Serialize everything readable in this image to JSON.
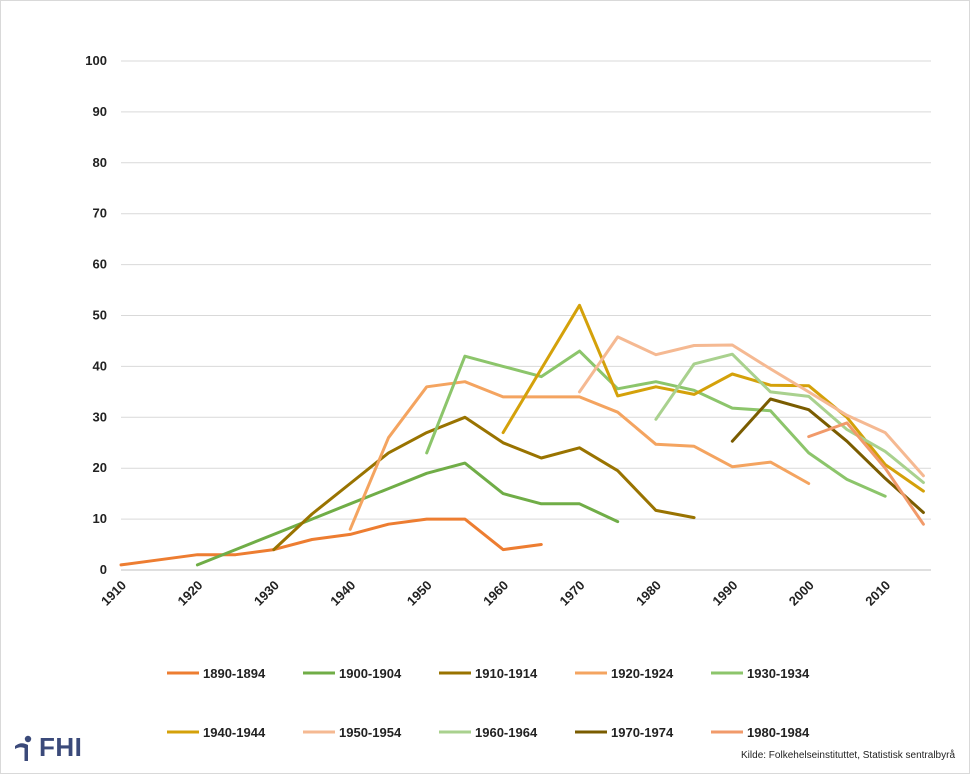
{
  "logo": {
    "text": "FHI",
    "icon": "fhi-logo-icon",
    "color": "#3b4a7a"
  },
  "source": "Kilde: Folkehelseinstituttet, Statistisk sentralbyrå",
  "chart_data": {
    "type": "line",
    "title": "",
    "xlabel": "",
    "ylabel": "",
    "xlim": [
      1910,
      2016
    ],
    "ylim": [
      0,
      100
    ],
    "x_ticks": [
      "1910",
      "1920",
      "1930",
      "1940",
      "1950",
      "1960",
      "1970",
      "1980",
      "1990",
      "2000",
      "2010"
    ],
    "y_ticks": [
      "0",
      "10",
      "20",
      "30",
      "40",
      "50",
      "60",
      "70",
      "80",
      "90",
      "100"
    ],
    "grid": "horizontal",
    "legend_position": "bottom",
    "series": [
      {
        "name": "1890-1894",
        "color": "#ed7d31",
        "x": [
          1910,
          1915,
          1920,
          1925,
          1930,
          1935,
          1940,
          1945,
          1950,
          1955,
          1960,
          1965
        ],
        "values": [
          1,
          2,
          3,
          3,
          4,
          6,
          7,
          9,
          10,
          10,
          4,
          5
        ]
      },
      {
        "name": "1900-1904",
        "color": "#70ad47",
        "x": [
          1920,
          1925,
          1930,
          1935,
          1940,
          1945,
          1950,
          1955,
          1960,
          1965,
          1970,
          1975
        ],
        "values": [
          1,
          4,
          7,
          10,
          13,
          16,
          19,
          21,
          15,
          13,
          13,
          9.5
        ]
      },
      {
        "name": "1910-1914",
        "color": "#997300",
        "x": [
          1930,
          1935,
          1940,
          1945,
          1950,
          1955,
          1960,
          1965,
          1970,
          1975,
          1980,
          1985
        ],
        "values": [
          4,
          11,
          17,
          23,
          27,
          30,
          25,
          22,
          24,
          19.5,
          11.7,
          10.3
        ]
      },
      {
        "name": "1920-1924",
        "color": "#f4a460",
        "x": [
          1940,
          1945,
          1950,
          1955,
          1960,
          1965,
          1970,
          1975,
          1980,
          1985,
          1990,
          1995,
          2000
        ],
        "values": [
          8,
          26,
          36,
          37,
          34,
          34,
          34,
          31,
          24.7,
          24.3,
          20.3,
          21.2,
          17
        ]
      },
      {
        "name": "1930-1934",
        "color": "#8cc56b",
        "x": [
          1950,
          1955,
          1960,
          1965,
          1970,
          1975,
          1980,
          1985,
          1990,
          1995,
          2000,
          2005,
          2010
        ],
        "values": [
          23,
          42,
          40,
          38,
          43,
          35.6,
          37,
          35.3,
          31.8,
          31.3,
          23,
          17.8,
          14.5
        ]
      },
      {
        "name": "1940-1944",
        "color": "#d4a10a",
        "x": [
          1960,
          1965,
          1970,
          1975,
          1980,
          1985,
          1990,
          1995,
          2000,
          2005,
          2010,
          2015
        ],
        "values": [
          27,
          39.5,
          52,
          34.2,
          36,
          34.5,
          38.5,
          36.3,
          36.2,
          30,
          20.7,
          15.5
        ]
      },
      {
        "name": "1950-1954",
        "color": "#f5b992",
        "x": [
          1970,
          1975,
          1980,
          1985,
          1990,
          1995,
          2000,
          2005,
          2010,
          2015
        ],
        "values": [
          35,
          45.8,
          42.3,
          44.1,
          44.2,
          39.5,
          35,
          30.4,
          27,
          18.5
        ]
      },
      {
        "name": "1960-1964",
        "color": "#a9d18e",
        "x": [
          1980,
          1985,
          1990,
          1995,
          2000,
          2005,
          2010,
          2015
        ],
        "values": [
          29.6,
          40.5,
          42.4,
          35,
          34.1,
          27.6,
          23.3,
          17.2
        ]
      },
      {
        "name": "1970-1974",
        "color": "#7a5c00",
        "x": [
          1990,
          1995,
          2000,
          2005,
          2010,
          2015
        ],
        "values": [
          25.3,
          33.6,
          31.5,
          25.3,
          18,
          11.3
        ]
      },
      {
        "name": "1980-1984",
        "color": "#f19a6a",
        "x": [
          2000,
          2005,
          2010,
          2015
        ],
        "values": [
          26.2,
          28.9,
          20,
          9
        ]
      }
    ]
  }
}
